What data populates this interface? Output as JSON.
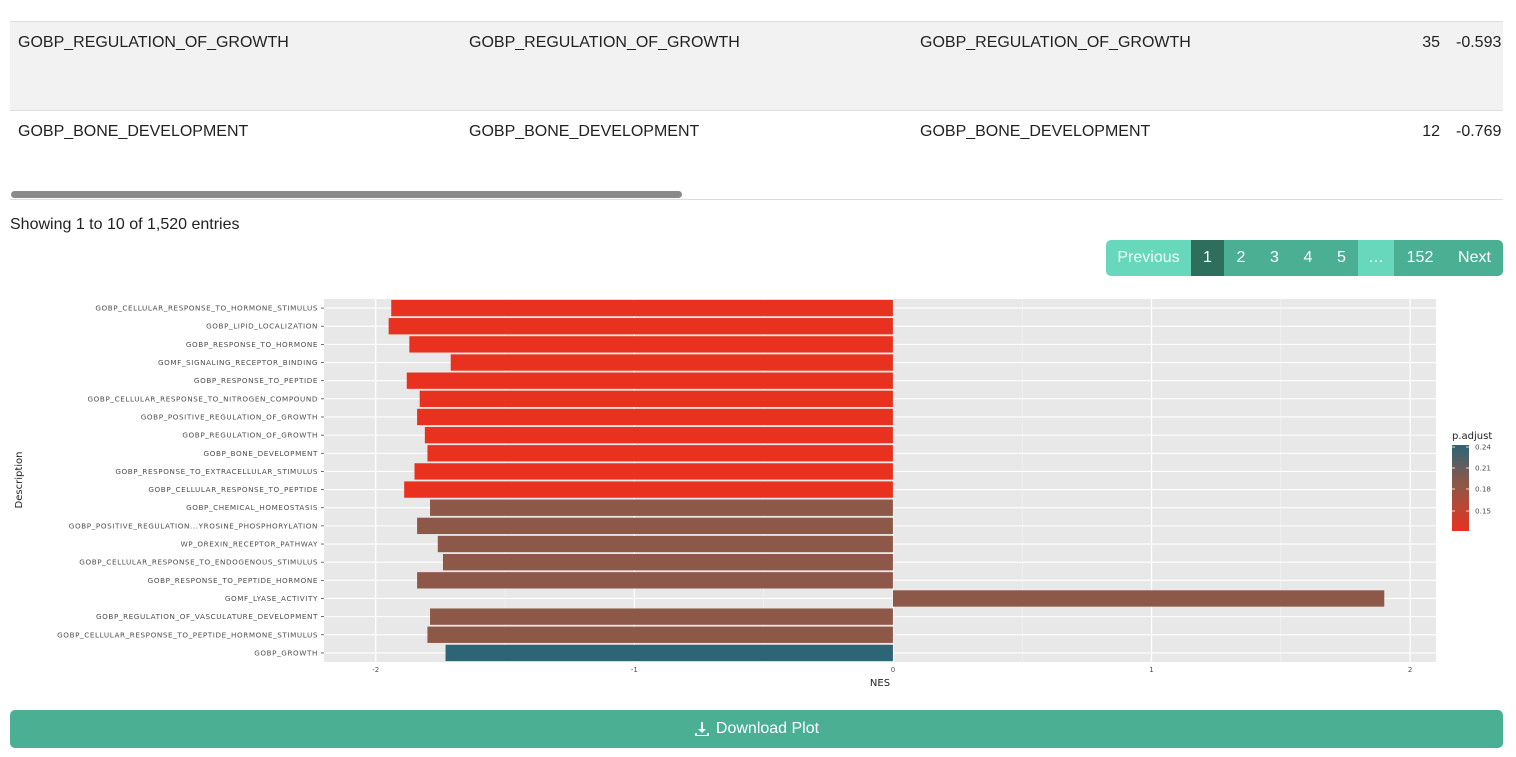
{
  "table": {
    "rows": [
      {
        "c1": "GOBP_REGULATION_OF_GROWTH",
        "c2": "GOBP_REGULATION_OF_GROWTH",
        "c3": "GOBP_REGULATION_OF_GROWTH",
        "c4": "35",
        "c5": "-0.593"
      },
      {
        "c1": "GOBP_BONE_DEVELOPMENT",
        "c2": "GOBP_BONE_DEVELOPMENT",
        "c3": "GOBP_BONE_DEVELOPMENT",
        "c4": "12",
        "c5": "-0.769"
      }
    ]
  },
  "info": {
    "text": "Showing 1 to 10 of 1,520 entries"
  },
  "pager": {
    "previous": "Previous",
    "p1": "1",
    "p2": "2",
    "p3": "3",
    "p4": "4",
    "p5": "5",
    "ellipsis": "…",
    "p152": "152",
    "next": "Next"
  },
  "chart_data": {
    "type": "bar",
    "orientation": "horizontal",
    "xlabel": "NES",
    "ylabel": "Description",
    "xlim": [
      -2.2,
      2.1
    ],
    "xticks": [
      "-2",
      "-1",
      "0",
      "1",
      "2"
    ],
    "categories": [
      "GOBP_CELLULAR_RESPONSE_TO_HORMONE_STIMULUS",
      "GOBP_LIPID_LOCALIZATION",
      "GOBP_RESPONSE_TO_HORMONE",
      "GOMF_SIGNALING_RECEPTOR_BINDING",
      "GOBP_RESPONSE_TO_PEPTIDE",
      "GOBP_CELLULAR_RESPONSE_TO_NITROGEN_COMPOUND",
      "GOBP_POSITIVE_REGULATION_OF_GROWTH",
      "GOBP_REGULATION_OF_GROWTH",
      "GOBP_BONE_DEVELOPMENT",
      "GOBP_RESPONSE_TO_EXTRACELLULAR_STIMULUS",
      "GOBP_CELLULAR_RESPONSE_TO_PEPTIDE",
      "GOBP_CHEMICAL_HOMEOSTASIS",
      "GOBP_POSITIVE_REGULATION...YROSINE_PHOSPHORYLATION",
      "WP_OREXIN_RECEPTOR_PATHWAY",
      "GOBP_CELLULAR_RESPONSE_TO_ENDOGENOUS_STIMULUS",
      "GOBP_RESPONSE_TO_PEPTIDE_HORMONE",
      "GOMF_LYASE_ACTIVITY",
      "GOBP_REGULATION_OF_VASCULATURE_DEVELOPMENT",
      "GOBP_CELLULAR_RESPONSE_TO_PEPTIDE_HORMONE_STIMULUS",
      "GOBP_GROWTH"
    ],
    "values": [
      -1.94,
      -1.95,
      -1.87,
      -1.71,
      -1.88,
      -1.83,
      -1.84,
      -1.81,
      -1.8,
      -1.85,
      -1.89,
      -1.79,
      -1.84,
      -1.76,
      -1.74,
      -1.84,
      1.9,
      -1.79,
      -1.8,
      -1.73
    ],
    "bar_colors": [
      "#e8321f",
      "#e8321f",
      "#e8321f",
      "#e8321f",
      "#e8321f",
      "#e8321f",
      "#e8321f",
      "#e8321f",
      "#e8321f",
      "#e8321f",
      "#e8321f",
      "#8e5848",
      "#8e5848",
      "#8e5848",
      "#8e5848",
      "#8e5848",
      "#8e5848",
      "#8e5848",
      "#8e5848",
      "#2d6476"
    ],
    "legend": {
      "title": "p.adjust",
      "ticks": [
        "0.24",
        "0.21",
        "0.18",
        "0.15"
      ],
      "placement": "right",
      "colors": [
        "#2d6476",
        "#8e5848",
        "#e8321f"
      ]
    },
    "grid": true,
    "panel_background": "#e8e8e8"
  },
  "download": {
    "label": "Download Plot"
  }
}
